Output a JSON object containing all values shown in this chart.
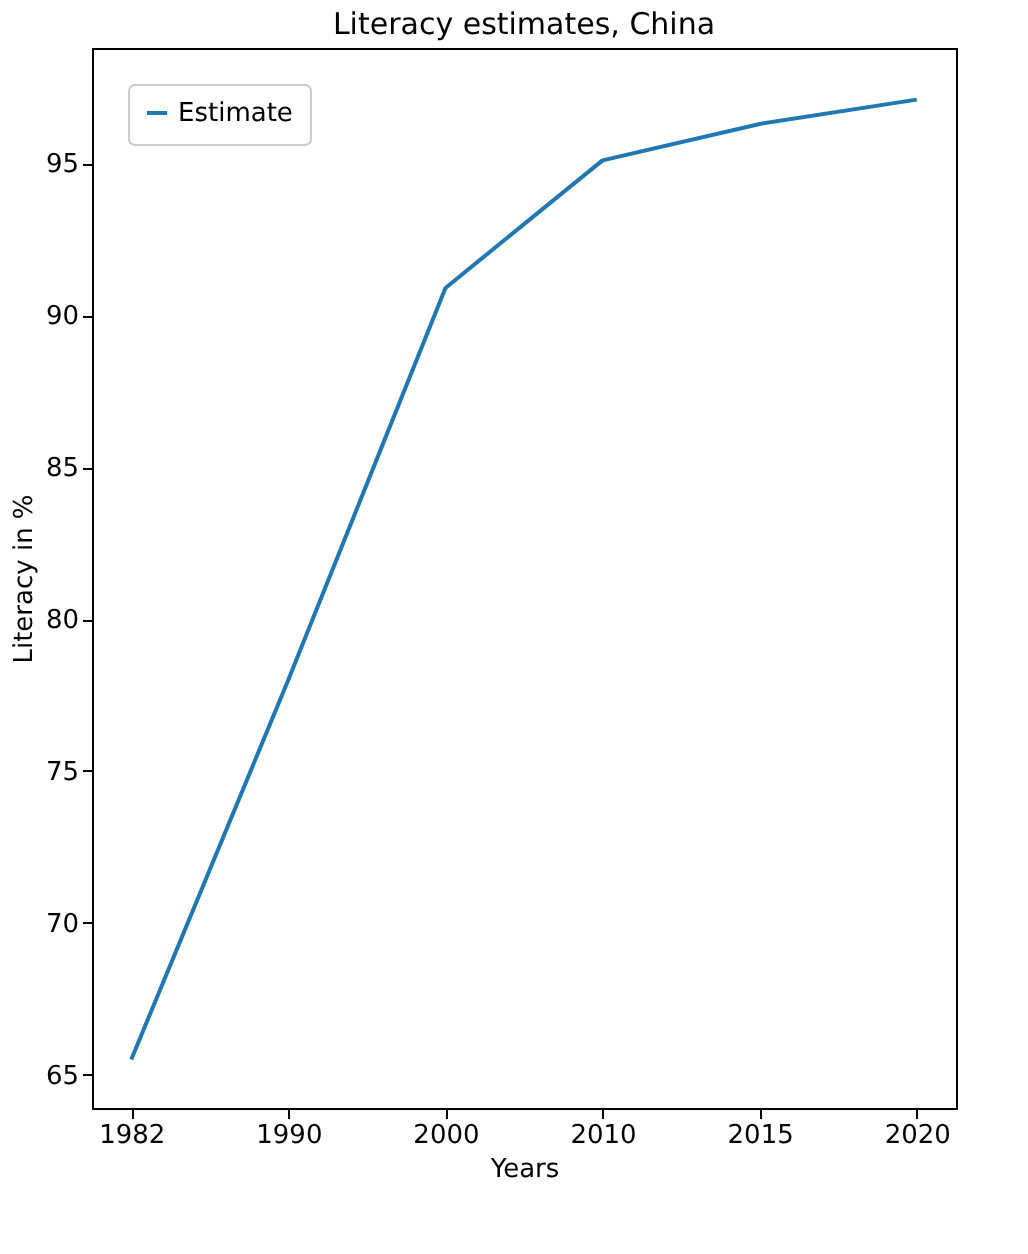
{
  "chart_data": {
    "type": "line",
    "title": "Literacy estimates, China",
    "xlabel": "Years",
    "ylabel": "Literacy in %",
    "categories": [
      "1982",
      "1990",
      "2000",
      "2010",
      "2015",
      "2020"
    ],
    "series": [
      {
        "name": "Estimate",
        "color": "#1f77b4",
        "values": [
          65.5,
          78.0,
          90.9,
          95.1,
          96.3,
          97.1
        ]
      }
    ],
    "ylim": [
      63.9,
      98.8
    ],
    "yticks": [
      65,
      70,
      75,
      80,
      85,
      90,
      95
    ],
    "grid": false,
    "legend": "top left",
    "marker": "none",
    "line_style": "solid"
  }
}
